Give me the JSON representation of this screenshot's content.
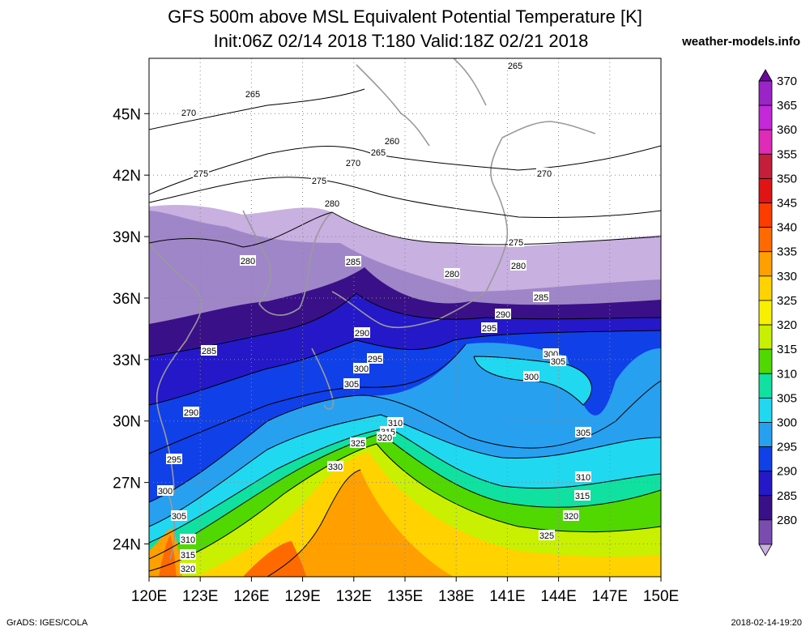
{
  "header": {
    "title": "GFS 500m above MSL Equivalent Potential Temperature [K]",
    "subtitle": "Init:06Z 02/14 2018 T:180 Valid:18Z 02/21 2018",
    "site": "weather-models.info"
  },
  "axes": {
    "lat_labels": [
      "45N",
      "42N",
      "39N",
      "36N",
      "33N",
      "30N",
      "27N",
      "24N"
    ],
    "lon_labels": [
      "120E",
      "123E",
      "126E",
      "129E",
      "132E",
      "135E",
      "138E",
      "141E",
      "144E",
      "147E",
      "150E"
    ]
  },
  "colorbar": {
    "labels": [
      "370",
      "365",
      "360",
      "355",
      "350",
      "345",
      "340",
      "335",
      "330",
      "325",
      "320",
      "315",
      "310",
      "305",
      "300",
      "295",
      "290",
      "285",
      "280"
    ],
    "colors": [
      "#6a0a9c",
      "#9a24c8",
      "#c428d8",
      "#e02ab8",
      "#c41e3a",
      "#e01414",
      "#ff3c00",
      "#ff6a00",
      "#ffa000",
      "#ffd200",
      "#f8f000",
      "#c8f000",
      "#50d800",
      "#10e0a0",
      "#20d8f0",
      "#28a0f0",
      "#1040e8",
      "#2418c8",
      "#3a1088",
      "#7a4cb0",
      "#c8b0e0"
    ]
  },
  "contour_labels": [
    "265",
    "265",
    "270",
    "260",
    "265",
    "270",
    "270",
    "275",
    "275",
    "275",
    "280",
    "280",
    "280",
    "280",
    "285",
    "285",
    "285",
    "290",
    "290",
    "290",
    "295",
    "295",
    "295",
    "300",
    "300",
    "300",
    "300",
    "305",
    "305",
    "305",
    "305",
    "310",
    "310",
    "310",
    "315",
    "315",
    "315",
    "320",
    "320",
    "320",
    "325",
    "325",
    "330"
  ],
  "footer": {
    "left": "GrADS: IGES/COLA",
    "right": "2018-02-14-19:20"
  }
}
